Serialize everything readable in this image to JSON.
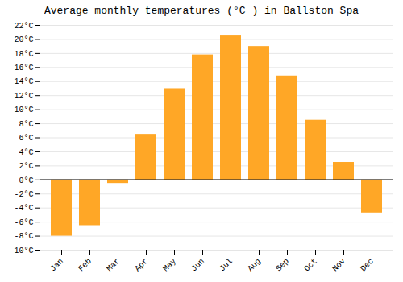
{
  "chart_data": {
    "type": "bar",
    "title": "Average monthly temperatures (°C ) in Ballston Spa",
    "categories": [
      "Jan",
      "Feb",
      "Mar",
      "Apr",
      "May",
      "Jun",
      "Jul",
      "Aug",
      "Sep",
      "Oct",
      "Nov",
      "Dec"
    ],
    "values": [
      -8.0,
      -6.5,
      -0.5,
      6.5,
      13.0,
      17.8,
      20.5,
      19.0,
      14.8,
      8.5,
      2.5,
      -4.7
    ],
    "color": "#FFA726",
    "ylim": [
      -10,
      22
    ],
    "yticks": [
      {
        "value": -10,
        "label": "-10°C"
      },
      {
        "value": -8,
        "label": "-8°C"
      },
      {
        "value": -6,
        "label": "-6°C"
      },
      {
        "value": -4,
        "label": "-4°C"
      },
      {
        "value": -2,
        "label": "-2°C"
      },
      {
        "value": 0,
        "label": "0°C"
      },
      {
        "value": 2,
        "label": "2°C"
      },
      {
        "value": 4,
        "label": "4°C"
      },
      {
        "value": 6,
        "label": "6°C"
      },
      {
        "value": 8,
        "label": "8°C"
      },
      {
        "value": 10,
        "label": "10°C"
      },
      {
        "value": 12,
        "label": "12°C"
      },
      {
        "value": 14,
        "label": "14°C"
      },
      {
        "value": 16,
        "label": "16°C"
      },
      {
        "value": 18,
        "label": "18°C"
      },
      {
        "value": 20,
        "label": "20°C"
      },
      {
        "value": 22,
        "label": "22°C"
      }
    ],
    "grid": true
  }
}
